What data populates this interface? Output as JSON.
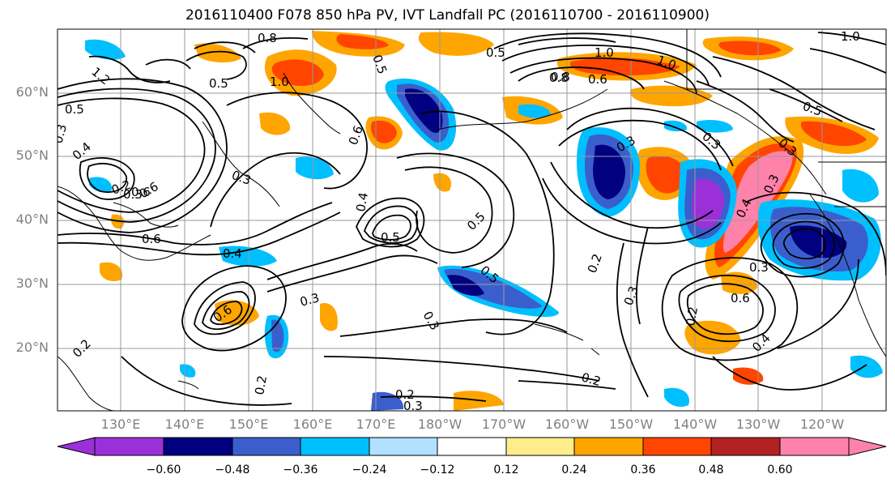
{
  "title": "2016110400 F078 850 hPa PV, IVT Landfall PC (2016110700 - 2016110900)",
  "lat_labels": [
    "60°N",
    "50°N",
    "40°N",
    "30°N",
    "20°N"
  ],
  "lon_labels": [
    "130°E",
    "140°E",
    "150°E",
    "160°E",
    "170°E",
    "180°W",
    "170°W",
    "160°W",
    "150°W",
    "140°W",
    "130°W",
    "120°W"
  ],
  "colorbar": {
    "colors": [
      "#9b30d9",
      "#000080",
      "#3a5fcd",
      "#00bfff",
      "#b0e2ff",
      "#ffffff",
      "#ffec8b",
      "#ffa500",
      "#ff4500",
      "#b22222",
      "#ff82ab"
    ],
    "ticks": [
      "−0.60",
      "−0.48",
      "−0.36",
      "−0.24",
      "−0.12",
      "0.12",
      "0.24",
      "0.36",
      "0.48",
      "0.60"
    ]
  },
  "contour_labels": [
    "0.8",
    "0.5",
    "1.2",
    "1.0",
    "0.5",
    "0.3",
    "0.3",
    "0.4",
    "0.6",
    "0.3",
    "0.6",
    "0.4",
    "0.5",
    "0.3",
    "0.2",
    "0.5",
    "0.5",
    "0.3",
    "0.2",
    "0.3",
    "0.2",
    "0.2",
    "0.3",
    "0.6",
    "0.4",
    "0.6",
    "0.8",
    "0.5",
    "0.3",
    "0.2",
    "0.3",
    "0.2",
    "1.0",
    "0.8",
    "0.6",
    "1.0",
    "1.0",
    "0.5",
    "0.4",
    "0.3",
    "0.6",
    "0.5",
    "0.3",
    "0.2",
    "0.3",
    "0.6",
    "0.4"
  ]
}
